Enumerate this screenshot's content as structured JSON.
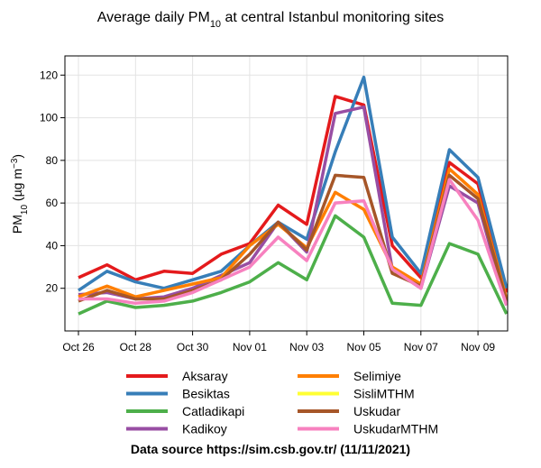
{
  "chart_data": {
    "type": "line",
    "title": {
      "text": "Average daily PM",
      "subscript": "10",
      "text_after": " at central Istanbul monitoring sites"
    },
    "y_label": {
      "text": "PM",
      "subscript": "10",
      "text_after": " (µg m",
      "superscript": "−3",
      "text_end": ")"
    },
    "caption": "Data source https://sim.csb.gov.tr/ (11/11/2021)",
    "categories": [
      "Oct 26",
      null,
      "Oct 28",
      null,
      "Oct 30",
      null,
      "Nov 01",
      null,
      "Nov 03",
      null,
      "Nov 05",
      null,
      "Nov 07",
      null,
      "Nov 09",
      null
    ],
    "ylim": [
      0,
      129
    ],
    "yticks": [
      20,
      40,
      60,
      80,
      100,
      120
    ],
    "grid": true,
    "legend": "bottom",
    "series": [
      {
        "name": "Aksaray",
        "color": "#e41a1c",
        "values": [
          25,
          31,
          24,
          28,
          27,
          36,
          41,
          59,
          50,
          110,
          106,
          40,
          25,
          79,
          69,
          18
        ]
      },
      {
        "name": "Besiktas",
        "color": "#377eb8",
        "values": [
          19,
          28,
          23,
          20,
          24,
          28,
          40,
          51,
          43,
          84,
          119,
          44,
          27,
          85,
          72,
          20
        ]
      },
      {
        "name": "Catladikapi",
        "color": "#4daf4a",
        "values": [
          8,
          14,
          11,
          12,
          14,
          18,
          23,
          32,
          24,
          54,
          44,
          13,
          12,
          41,
          36,
          8
        ]
      },
      {
        "name": "Kadikoy",
        "color": "#984ea3",
        "values": [
          17,
          18,
          15,
          16,
          20,
          26,
          32,
          51,
          37,
          102,
          105,
          29,
          20,
          68,
          60,
          12
        ]
      },
      {
        "name": "Selimiye",
        "color": "#ff7f00",
        "values": [
          16,
          21,
          16,
          19,
          22,
          25,
          40,
          50,
          39,
          65,
          57,
          30,
          22,
          76,
          64,
          15
        ]
      },
      {
        "name": "SisliMTHM",
        "color": "#ffff33",
        "values": [
          null,
          null,
          null,
          null,
          null,
          null,
          null,
          null,
          null,
          null,
          null,
          null,
          null,
          null,
          null,
          null
        ]
      },
      {
        "name": "Uskudar",
        "color": "#a65628",
        "values": [
          14,
          19,
          15,
          15,
          19,
          24,
          36,
          51,
          38,
          73,
          72,
          27,
          21,
          73,
          62,
          14
        ]
      },
      {
        "name": "UskudarMTHM",
        "color": "#f781bf",
        "values": [
          15,
          15,
          13,
          14,
          18,
          24,
          30,
          44,
          33,
          60,
          61,
          29,
          20,
          71,
          52,
          12
        ]
      }
    ]
  }
}
